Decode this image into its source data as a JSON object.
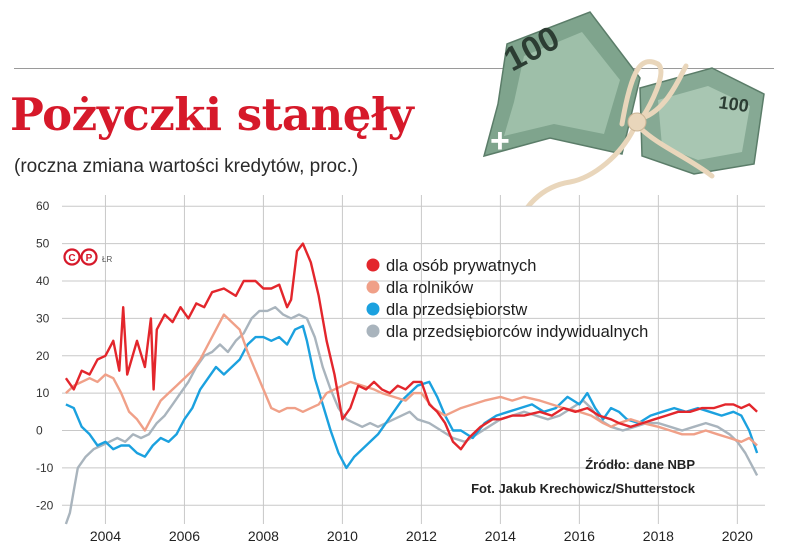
{
  "header": {
    "title": "Pożyczki stanęły",
    "subtitle": "(roczna zmiana wartości kredytów, proc.)"
  },
  "logo": {
    "mark": "CP",
    "suffix": "ŁR"
  },
  "source_text": "Źródło: dane NBP",
  "photo_credit": "Fot. Jakub Krechowicz/Shutterstock",
  "illustration": {
    "icon": "banknote-100-zloty-tied-with-string-icon",
    "bill_label": "100"
  },
  "colors": {
    "title": "#d6192a",
    "grid": "#c8c8c8"
  },
  "chart_data": {
    "type": "line",
    "title": "Pożyczki stanęły",
    "subtitle": "(roczna zmiana wartości kredytów, proc.)",
    "xlabel": "",
    "ylabel": "",
    "xlim": [
      2002.9,
      2020.7
    ],
    "ylim": [
      -25,
      63
    ],
    "x_ticks": [
      2004,
      2006,
      2008,
      2010,
      2012,
      2014,
      2016,
      2018,
      2020
    ],
    "y_ticks": [
      -20,
      -10,
      0,
      10,
      20,
      30,
      40,
      50,
      60
    ],
    "grid": true,
    "legend_position": "top-right",
    "series": [
      {
        "name": "dla osób prywatnych",
        "color": "#e3262c",
        "points": [
          [
            2003.0,
            14
          ],
          [
            2003.2,
            11
          ],
          [
            2003.4,
            16
          ],
          [
            2003.6,
            15
          ],
          [
            2003.8,
            19
          ],
          [
            2004.0,
            20
          ],
          [
            2004.2,
            24
          ],
          [
            2004.35,
            16
          ],
          [
            2004.45,
            33
          ],
          [
            2004.55,
            15
          ],
          [
            2004.8,
            24
          ],
          [
            2005.0,
            17
          ],
          [
            2005.15,
            30
          ],
          [
            2005.22,
            11
          ],
          [
            2005.3,
            27
          ],
          [
            2005.5,
            31
          ],
          [
            2005.7,
            29
          ],
          [
            2005.9,
            33
          ],
          [
            2006.1,
            30
          ],
          [
            2006.3,
            34
          ],
          [
            2006.5,
            33
          ],
          [
            2006.7,
            37
          ],
          [
            2007.0,
            38
          ],
          [
            2007.3,
            36
          ],
          [
            2007.5,
            40
          ],
          [
            2007.8,
            40
          ],
          [
            2008.0,
            38
          ],
          [
            2008.2,
            38
          ],
          [
            2008.4,
            39
          ],
          [
            2008.6,
            33
          ],
          [
            2008.7,
            35
          ],
          [
            2008.85,
            48
          ],
          [
            2009.0,
            50
          ],
          [
            2009.2,
            45
          ],
          [
            2009.4,
            36
          ],
          [
            2009.6,
            24
          ],
          [
            2009.8,
            15
          ],
          [
            2010.0,
            3
          ],
          [
            2010.2,
            6
          ],
          [
            2010.4,
            12
          ],
          [
            2010.6,
            11
          ],
          [
            2010.8,
            13
          ],
          [
            2011.0,
            11
          ],
          [
            2011.2,
            10
          ],
          [
            2011.4,
            12
          ],
          [
            2011.6,
            11
          ],
          [
            2011.8,
            13
          ],
          [
            2012.0,
            13
          ],
          [
            2012.2,
            7
          ],
          [
            2012.4,
            5
          ],
          [
            2012.6,
            2
          ],
          [
            2012.8,
            -3
          ],
          [
            2013.0,
            -5
          ],
          [
            2013.2,
            -2
          ],
          [
            2013.5,
            1
          ],
          [
            2013.8,
            3
          ],
          [
            2014.0,
            3
          ],
          [
            2014.3,
            4
          ],
          [
            2014.6,
            4
          ],
          [
            2015.0,
            5
          ],
          [
            2015.3,
            4
          ],
          [
            2015.6,
            6
          ],
          [
            2015.9,
            5
          ],
          [
            2016.2,
            6
          ],
          [
            2016.5,
            4
          ],
          [
            2016.8,
            3
          ],
          [
            2017.0,
            2
          ],
          [
            2017.3,
            1
          ],
          [
            2017.6,
            2
          ],
          [
            2017.9,
            3
          ],
          [
            2018.2,
            4
          ],
          [
            2018.5,
            5
          ],
          [
            2018.8,
            5
          ],
          [
            2019.1,
            6
          ],
          [
            2019.4,
            6
          ],
          [
            2019.7,
            7
          ],
          [
            2019.9,
            7
          ],
          [
            2020.1,
            6
          ],
          [
            2020.3,
            7
          ],
          [
            2020.5,
            5
          ]
        ]
      },
      {
        "name": "dla rolników",
        "color": "#f0a088",
        "points": [
          [
            2003.0,
            10
          ],
          [
            2003.2,
            12
          ],
          [
            2003.4,
            13
          ],
          [
            2003.6,
            14
          ],
          [
            2003.8,
            13
          ],
          [
            2004.0,
            15
          ],
          [
            2004.2,
            14
          ],
          [
            2004.4,
            10
          ],
          [
            2004.6,
            5
          ],
          [
            2004.8,
            3
          ],
          [
            2005.0,
            0
          ],
          [
            2005.2,
            4
          ],
          [
            2005.4,
            8
          ],
          [
            2005.6,
            10
          ],
          [
            2005.8,
            12
          ],
          [
            2006.0,
            14
          ],
          [
            2006.2,
            16
          ],
          [
            2006.4,
            19
          ],
          [
            2006.6,
            23
          ],
          [
            2006.8,
            27
          ],
          [
            2007.0,
            31
          ],
          [
            2007.2,
            29
          ],
          [
            2007.4,
            27
          ],
          [
            2007.6,
            21
          ],
          [
            2007.8,
            16
          ],
          [
            2008.0,
            11
          ],
          [
            2008.2,
            6
          ],
          [
            2008.4,
            5
          ],
          [
            2008.6,
            6
          ],
          [
            2008.8,
            6
          ],
          [
            2009.0,
            5
          ],
          [
            2009.2,
            6
          ],
          [
            2009.4,
            7
          ],
          [
            2009.6,
            10
          ],
          [
            2009.8,
            11
          ],
          [
            2010.0,
            12
          ],
          [
            2010.2,
            13
          ],
          [
            2010.5,
            12
          ],
          [
            2010.8,
            11
          ],
          [
            2011.0,
            10
          ],
          [
            2011.3,
            9
          ],
          [
            2011.6,
            8
          ],
          [
            2011.8,
            10
          ],
          [
            2012.0,
            10
          ],
          [
            2012.3,
            6
          ],
          [
            2012.6,
            4
          ],
          [
            2012.8,
            5
          ],
          [
            2013.0,
            6
          ],
          [
            2013.3,
            7
          ],
          [
            2013.6,
            8
          ],
          [
            2014.0,
            9
          ],
          [
            2014.3,
            8
          ],
          [
            2014.6,
            9
          ],
          [
            2015.0,
            8
          ],
          [
            2015.3,
            7
          ],
          [
            2015.6,
            6
          ],
          [
            2016.0,
            5
          ],
          [
            2016.3,
            4
          ],
          [
            2016.6,
            2
          ],
          [
            2016.8,
            1
          ],
          [
            2017.0,
            2
          ],
          [
            2017.3,
            3
          ],
          [
            2017.6,
            2
          ],
          [
            2018.0,
            1
          ],
          [
            2018.3,
            0
          ],
          [
            2018.6,
            -1
          ],
          [
            2018.9,
            -1
          ],
          [
            2019.2,
            0
          ],
          [
            2019.5,
            -1
          ],
          [
            2019.8,
            -2
          ],
          [
            2020.1,
            -3
          ],
          [
            2020.3,
            -2
          ],
          [
            2020.5,
            -4
          ]
        ]
      },
      {
        "name": "dla przedsiębiorstw",
        "color": "#1ba1df",
        "points": [
          [
            2003.0,
            7
          ],
          [
            2003.2,
            6
          ],
          [
            2003.4,
            1
          ],
          [
            2003.6,
            -1
          ],
          [
            2003.8,
            -4
          ],
          [
            2004.0,
            -3
          ],
          [
            2004.2,
            -5
          ],
          [
            2004.4,
            -4
          ],
          [
            2004.6,
            -4
          ],
          [
            2004.8,
            -6
          ],
          [
            2005.0,
            -7
          ],
          [
            2005.2,
            -4
          ],
          [
            2005.4,
            -2
          ],
          [
            2005.6,
            -3
          ],
          [
            2005.8,
            -1
          ],
          [
            2006.0,
            3
          ],
          [
            2006.2,
            6
          ],
          [
            2006.4,
            11
          ],
          [
            2006.6,
            14
          ],
          [
            2006.8,
            17
          ],
          [
            2007.0,
            15
          ],
          [
            2007.2,
            17
          ],
          [
            2007.4,
            19
          ],
          [
            2007.6,
            23
          ],
          [
            2007.8,
            25
          ],
          [
            2008.0,
            25
          ],
          [
            2008.2,
            24
          ],
          [
            2008.4,
            25
          ],
          [
            2008.6,
            23
          ],
          [
            2008.8,
            27
          ],
          [
            2009.0,
            28
          ],
          [
            2009.1,
            24
          ],
          [
            2009.3,
            14
          ],
          [
            2009.5,
            7
          ],
          [
            2009.7,
            0
          ],
          [
            2009.9,
            -6
          ],
          [
            2010.1,
            -10
          ],
          [
            2010.3,
            -7
          ],
          [
            2010.5,
            -5
          ],
          [
            2010.7,
            -3
          ],
          [
            2010.9,
            -1
          ],
          [
            2011.1,
            2
          ],
          [
            2011.3,
            5
          ],
          [
            2011.5,
            8
          ],
          [
            2011.7,
            10
          ],
          [
            2011.9,
            12
          ],
          [
            2012.2,
            13
          ],
          [
            2012.4,
            9
          ],
          [
            2012.6,
            4
          ],
          [
            2012.8,
            0
          ],
          [
            2013.0,
            0
          ],
          [
            2013.3,
            -2
          ],
          [
            2013.6,
            2
          ],
          [
            2013.9,
            4
          ],
          [
            2014.2,
            5
          ],
          [
            2014.5,
            6
          ],
          [
            2014.8,
            7
          ],
          [
            2015.1,
            5
          ],
          [
            2015.4,
            6
          ],
          [
            2015.7,
            9
          ],
          [
            2016.0,
            7
          ],
          [
            2016.2,
            10
          ],
          [
            2016.4,
            6
          ],
          [
            2016.6,
            3
          ],
          [
            2016.8,
            6
          ],
          [
            2017.0,
            5
          ],
          [
            2017.2,
            3
          ],
          [
            2017.5,
            2
          ],
          [
            2017.8,
            4
          ],
          [
            2018.1,
            5
          ],
          [
            2018.4,
            6
          ],
          [
            2018.7,
            5
          ],
          [
            2019.0,
            6
          ],
          [
            2019.3,
            5
          ],
          [
            2019.6,
            4
          ],
          [
            2019.9,
            5
          ],
          [
            2020.1,
            4
          ],
          [
            2020.3,
            0
          ],
          [
            2020.5,
            -6
          ]
        ]
      },
      {
        "name": "dla przedsiębiorców indywidualnych",
        "color": "#a9b4bd",
        "points": [
          [
            2003.0,
            -25
          ],
          [
            2003.1,
            -22
          ],
          [
            2003.2,
            -16
          ],
          [
            2003.3,
            -10
          ],
          [
            2003.5,
            -7
          ],
          [
            2003.7,
            -5
          ],
          [
            2003.9,
            -4
          ],
          [
            2004.1,
            -3
          ],
          [
            2004.3,
            -2
          ],
          [
            2004.5,
            -3
          ],
          [
            2004.7,
            -1
          ],
          [
            2004.9,
            -2
          ],
          [
            2005.1,
            -1
          ],
          [
            2005.3,
            2
          ],
          [
            2005.5,
            4
          ],
          [
            2005.7,
            7
          ],
          [
            2005.9,
            10
          ],
          [
            2006.1,
            13
          ],
          [
            2006.3,
            17
          ],
          [
            2006.5,
            20
          ],
          [
            2006.7,
            21
          ],
          [
            2006.9,
            23
          ],
          [
            2007.1,
            21
          ],
          [
            2007.3,
            24
          ],
          [
            2007.5,
            26
          ],
          [
            2007.7,
            30
          ],
          [
            2007.9,
            32
          ],
          [
            2008.1,
            32
          ],
          [
            2008.3,
            33
          ],
          [
            2008.5,
            31
          ],
          [
            2008.7,
            30
          ],
          [
            2008.9,
            31
          ],
          [
            2009.1,
            30
          ],
          [
            2009.3,
            25
          ],
          [
            2009.5,
            17
          ],
          [
            2009.7,
            11
          ],
          [
            2009.9,
            6
          ],
          [
            2010.1,
            3
          ],
          [
            2010.3,
            2
          ],
          [
            2010.5,
            1
          ],
          [
            2010.7,
            2
          ],
          [
            2010.9,
            1
          ],
          [
            2011.1,
            2
          ],
          [
            2011.3,
            3
          ],
          [
            2011.5,
            4
          ],
          [
            2011.7,
            5
          ],
          [
            2011.9,
            3
          ],
          [
            2012.2,
            2
          ],
          [
            2012.5,
            0
          ],
          [
            2012.8,
            -2
          ],
          [
            2013.1,
            -3
          ],
          [
            2013.4,
            -1
          ],
          [
            2013.7,
            1
          ],
          [
            2014.0,
            3
          ],
          [
            2014.3,
            4
          ],
          [
            2014.6,
            5
          ],
          [
            2014.9,
            4
          ],
          [
            2015.2,
            3
          ],
          [
            2015.5,
            4
          ],
          [
            2015.8,
            6
          ],
          [
            2016.1,
            8
          ],
          [
            2016.3,
            6
          ],
          [
            2016.5,
            3
          ],
          [
            2016.8,
            1
          ],
          [
            2017.1,
            0
          ],
          [
            2017.4,
            1
          ],
          [
            2017.7,
            2
          ],
          [
            2018.0,
            2
          ],
          [
            2018.3,
            1
          ],
          [
            2018.6,
            0
          ],
          [
            2018.9,
            1
          ],
          [
            2019.2,
            2
          ],
          [
            2019.5,
            1
          ],
          [
            2019.8,
            -1
          ],
          [
            2020.0,
            -3
          ],
          [
            2020.2,
            -6
          ],
          [
            2020.4,
            -10
          ],
          [
            2020.5,
            -12
          ]
        ]
      }
    ]
  }
}
